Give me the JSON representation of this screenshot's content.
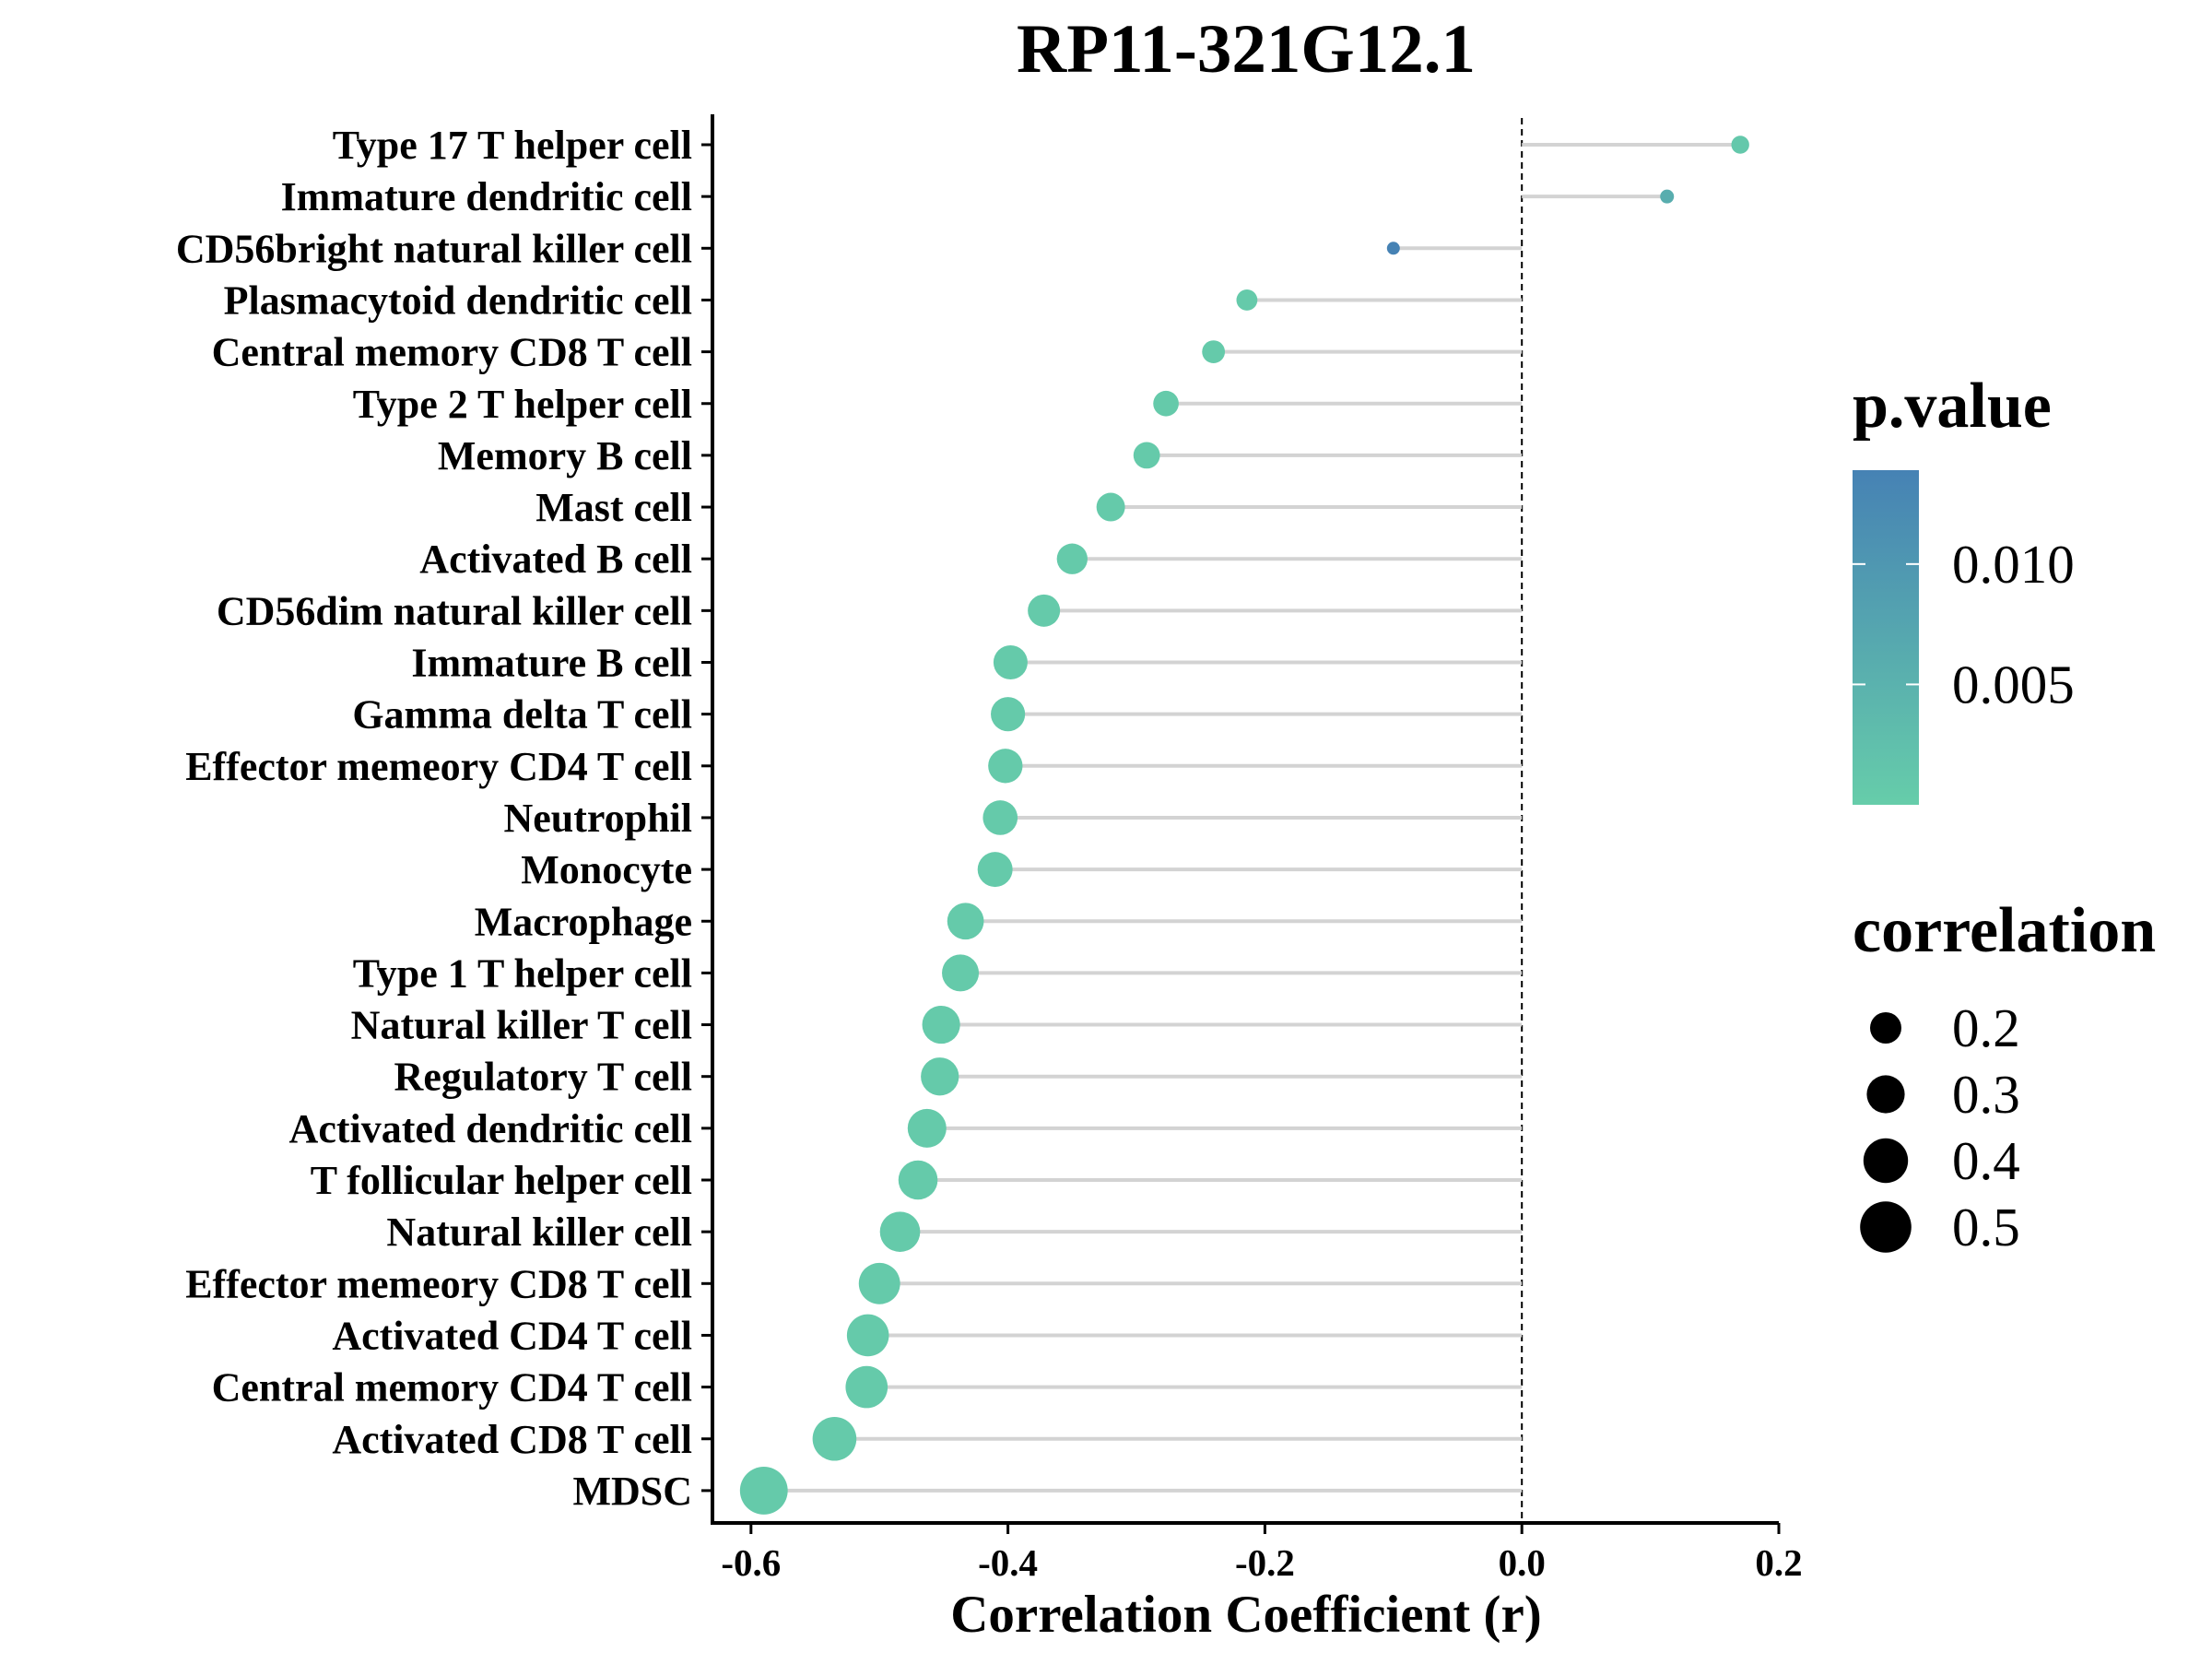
{
  "chart_data": {
    "type": "lollipop",
    "title": "RP11-321G12.1",
    "xlabel": "Correlation Coefficient (r)",
    "ylabel": "",
    "xlim": [
      -0.63,
      0.2
    ],
    "x_ticks": [
      "-0.6",
      "-0.4",
      "-0.2",
      "0.0",
      "0.2"
    ],
    "x_tick_values": [
      -0.6,
      -0.4,
      -0.2,
      0.0,
      0.2
    ],
    "reference_line": 0.0,
    "categories": [
      "Type 17 T helper cell",
      "Immature dendritic cell",
      "CD56bright natural killer cell",
      "Plasmacytoid dendritic cell",
      "Central memory CD8 T cell",
      "Type 2 T helper cell",
      "Memory B cell",
      "Mast cell",
      "Activated B cell",
      "CD56dim natural killer cell",
      "Immature  B cell",
      "Gamma delta T cell",
      "Effector memeory CD4 T cell",
      "Neutrophil",
      "Monocyte",
      "Macrophage",
      "Type 1 T helper cell",
      "Natural killer T cell",
      "Regulatory T cell",
      "Activated dendritic cell",
      "T follicular helper cell",
      "Natural killer cell",
      "Effector memeory CD8 T cell",
      "Activated CD4 T cell",
      "Central memory CD4 T cell",
      "Activated CD8 T cell",
      "MDSC"
    ],
    "values": [
      0.17,
      0.113,
      -0.1,
      -0.214,
      -0.24,
      -0.277,
      -0.292,
      -0.32,
      -0.35,
      -0.372,
      -0.398,
      -0.4,
      -0.402,
      -0.406,
      -0.41,
      -0.433,
      -0.437,
      -0.452,
      -0.453,
      -0.463,
      -0.47,
      -0.484,
      -0.5,
      -0.509,
      -0.51,
      -0.535,
      -0.59
    ],
    "p_values": [
      0.001,
      0.006,
      0.014,
      0.0005,
      0.0005,
      0.0005,
      0.0005,
      0.0005,
      0.0005,
      0.0005,
      0.0005,
      0.0005,
      0.0005,
      0.0005,
      0.0005,
      0.0005,
      0.0005,
      0.0005,
      0.0005,
      0.0005,
      0.0005,
      0.0005,
      0.0005,
      0.0005,
      0.0005,
      0.0005,
      0.0005
    ],
    "legend_color": {
      "title": "p.value",
      "labels": [
        "0.010",
        "0.005"
      ],
      "label_values": [
        0.01,
        0.005
      ],
      "range": [
        0.0,
        0.0139
      ],
      "low_color": "#66CDAA",
      "high_color": "#4682B4"
    },
    "legend_size": {
      "title": "correlation",
      "labels": [
        "0.2",
        "0.3",
        "0.4",
        "0.5"
      ],
      "label_values": [
        0.2,
        0.3,
        0.4,
        0.5
      ]
    },
    "segment_color": "#d3d3d3",
    "legend_position": "right",
    "grid": false
  }
}
